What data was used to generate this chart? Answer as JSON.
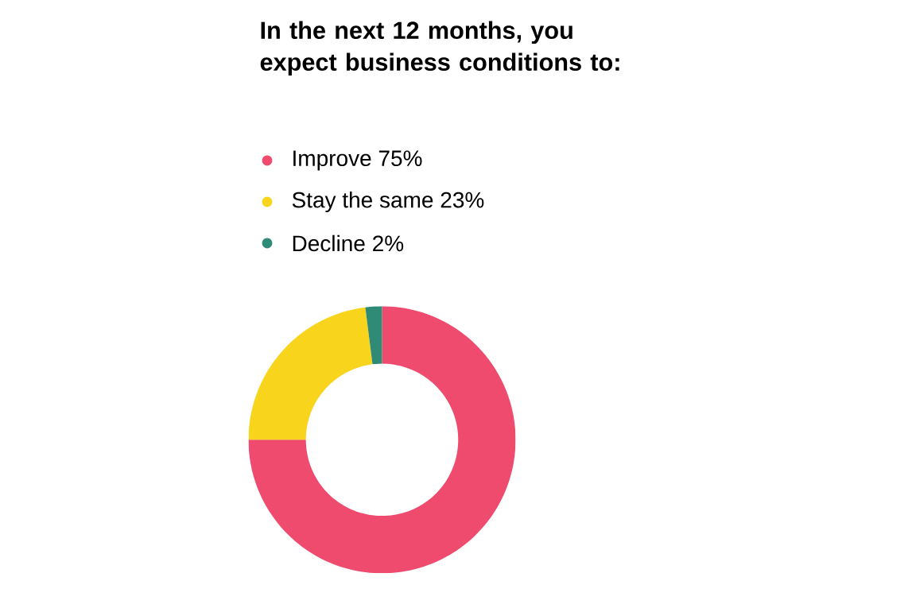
{
  "chart_data": {
    "type": "donut",
    "title": "In the next 12 months, you expect business conditions to:",
    "categories": [
      "Improve",
      "Stay the same",
      "Decline"
    ],
    "values": [
      75,
      23,
      2
    ],
    "value_labels": [
      "75%",
      "23%",
      "2%"
    ],
    "colors": [
      "#ef4b6e",
      "#f8d41c",
      "#2f8b75"
    ],
    "legend": "top"
  }
}
